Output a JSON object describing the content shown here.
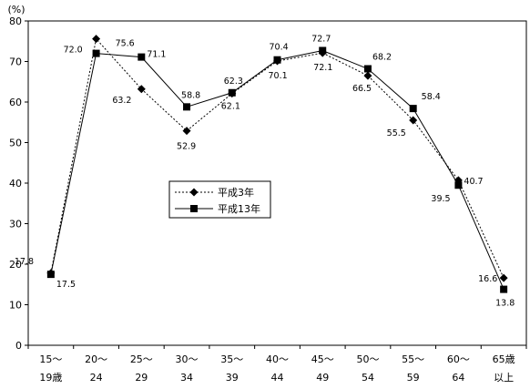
{
  "chart_data": {
    "type": "line",
    "title": "",
    "xlabel": "",
    "ylabel": "",
    "unit_label": "(%)",
    "ylim": [
      0,
      80
    ],
    "yticks": [
      0,
      10,
      20,
      30,
      40,
      50,
      60,
      70,
      80
    ],
    "grid": false,
    "legend_position": "center",
    "categories": [
      [
        "15～",
        "19歳"
      ],
      [
        "20～",
        "24"
      ],
      [
        "25～",
        "29"
      ],
      [
        "30～",
        "34"
      ],
      [
        "35～",
        "39"
      ],
      [
        "40～",
        "44"
      ],
      [
        "45～",
        "49"
      ],
      [
        "50～",
        "54"
      ],
      [
        "55～",
        "59"
      ],
      [
        "60～",
        "64"
      ],
      [
        "65歳",
        "以上"
      ]
    ],
    "series": [
      {
        "name": "平成3年",
        "marker": "diamond",
        "line_style": "dotted",
        "values": [
          17.8,
          75.6,
          63.2,
          52.9,
          62.1,
          70.1,
          72.1,
          66.5,
          55.5,
          40.7,
          16.6
        ],
        "labels": [
          "17.8",
          "75.6",
          "63.2",
          "52.9",
          "62.1",
          "70.1",
          "72.1",
          "66.5",
          "55.5",
          "40.7",
          "16.6"
        ]
      },
      {
        "name": "平成13年",
        "marker": "square",
        "line_style": "solid",
        "values": [
          17.5,
          72.0,
          71.1,
          58.8,
          62.3,
          70.4,
          72.7,
          68.2,
          58.4,
          39.5,
          13.8
        ],
        "labels": [
          "17.5",
          "72.0",
          "71.1",
          "58.8",
          "62.3",
          "70.4",
          "72.7",
          "68.2",
          "58.4",
          "39.5",
          "13.8"
        ]
      }
    ],
    "colors": {
      "line": "#000000",
      "background": "#ffffff"
    }
  }
}
